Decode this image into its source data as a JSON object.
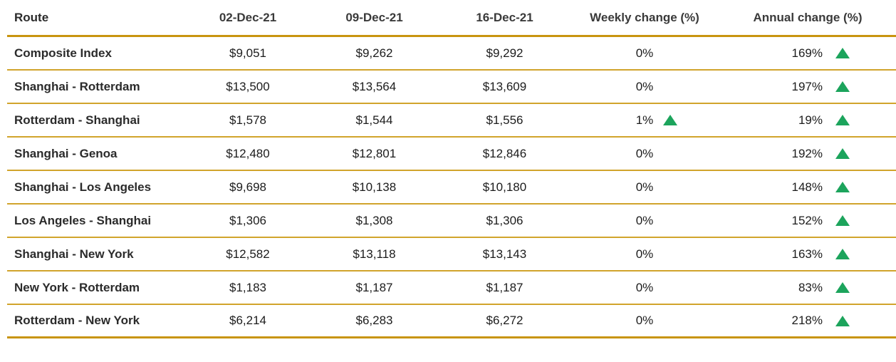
{
  "colors": {
    "accent_gold_thick_rule": "#C8940F",
    "gold_row_rule": "#D1A42C",
    "up_green": "#1CA45C",
    "header_text": "#3A3A3A",
    "route_text": "#2B2B2B",
    "value_text": "#1C1C1C"
  },
  "icons": {
    "up_triangle": "▲"
  },
  "chart_data": {
    "type": "table",
    "columns": [
      "Route",
      "02-Dec-21",
      "09-Dec-21",
      "16-Dec-21",
      "Weekly change (%)",
      "Annual change (%)"
    ],
    "rows": [
      {
        "route": "Composite Index",
        "rate_02dec21": "$9,051",
        "rate_09dec21": "$9,262",
        "rate_16dec21": "$9,292",
        "weekly_change": "0%",
        "weekly_up_arrow": false,
        "annual_change": "169%",
        "annual_up_arrow": true
      },
      {
        "route": "Shanghai - Rotterdam",
        "rate_02dec21": "$13,500",
        "rate_09dec21": "$13,564",
        "rate_16dec21": "$13,609",
        "weekly_change": "0%",
        "weekly_up_arrow": false,
        "annual_change": "197%",
        "annual_up_arrow": true
      },
      {
        "route": "Rotterdam - Shanghai",
        "rate_02dec21": "$1,578",
        "rate_09dec21": "$1,544",
        "rate_16dec21": "$1,556",
        "weekly_change": "1%",
        "weekly_up_arrow": true,
        "annual_change": "19%",
        "annual_up_arrow": true
      },
      {
        "route": "Shanghai - Genoa",
        "rate_02dec21": "$12,480",
        "rate_09dec21": "$12,801",
        "rate_16dec21": "$12,846",
        "weekly_change": "0%",
        "weekly_up_arrow": false,
        "annual_change": "192%",
        "annual_up_arrow": true
      },
      {
        "route": "Shanghai - Los Angeles",
        "rate_02dec21": "$9,698",
        "rate_09dec21": "$10,138",
        "rate_16dec21": "$10,180",
        "weekly_change": "0%",
        "weekly_up_arrow": false,
        "annual_change": "148%",
        "annual_up_arrow": true
      },
      {
        "route": "Los Angeles - Shanghai",
        "rate_02dec21": "$1,306",
        "rate_09dec21": "$1,308",
        "rate_16dec21": "$1,306",
        "weekly_change": "0%",
        "weekly_up_arrow": false,
        "annual_change": "152%",
        "annual_up_arrow": true
      },
      {
        "route": "Shanghai - New York",
        "rate_02dec21": "$12,582",
        "rate_09dec21": "$13,118",
        "rate_16dec21": "$13,143",
        "weekly_change": "0%",
        "weekly_up_arrow": false,
        "annual_change": "163%",
        "annual_up_arrow": true
      },
      {
        "route": "New York - Rotterdam",
        "rate_02dec21": "$1,183",
        "rate_09dec21": "$1,187",
        "rate_16dec21": "$1,187",
        "weekly_change": "0%",
        "weekly_up_arrow": false,
        "annual_change": "83%",
        "annual_up_arrow": true
      },
      {
        "route": "Rotterdam - New York",
        "rate_02dec21": "$6,214",
        "rate_09dec21": "$6,283",
        "rate_16dec21": "$6,272",
        "weekly_change": "0%",
        "weekly_up_arrow": false,
        "annual_change": "218%",
        "annual_up_arrow": true
      }
    ]
  }
}
